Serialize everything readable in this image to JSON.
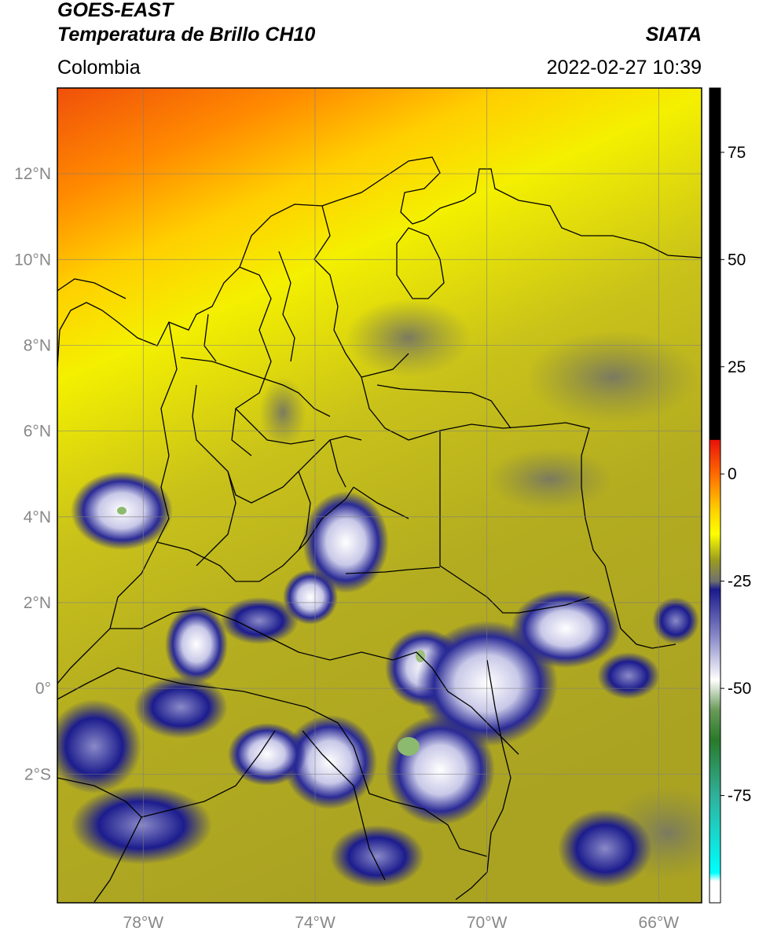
{
  "header": {
    "satellite": "GOES-EAST",
    "product": "Temperatura de Brillo CH10",
    "source": "SIATA",
    "region": "Colombia",
    "timestamp": "2022-02-27 10:39"
  },
  "map": {
    "lon_range": [
      -80,
      -65
    ],
    "lat_range": [
      -5,
      14
    ],
    "lat_ticks": [
      {
        "value": 12,
        "label": "12°N"
      },
      {
        "value": 10,
        "label": "10°N"
      },
      {
        "value": 8,
        "label": "8°N"
      },
      {
        "value": 6,
        "label": "6°N"
      },
      {
        "value": 4,
        "label": "4°N"
      },
      {
        "value": 2,
        "label": "2°N"
      },
      {
        "value": 0,
        "label": "0°"
      },
      {
        "value": -2,
        "label": "2°S"
      }
    ],
    "lon_ticks": [
      {
        "value": -78,
        "label": "78°W"
      },
      {
        "value": -74,
        "label": "74°W"
      },
      {
        "value": -70,
        "label": "70°W"
      },
      {
        "value": -66,
        "label": "66°W"
      }
    ]
  },
  "colorbar": {
    "range": [
      -100,
      90
    ],
    "ticks": [
      {
        "value": 75,
        "label": "75"
      },
      {
        "value": 50,
        "label": "50"
      },
      {
        "value": 25,
        "label": "25"
      },
      {
        "value": 0,
        "label": "0"
      },
      {
        "value": -25,
        "label": "-25"
      },
      {
        "value": -50,
        "label": "-50"
      },
      {
        "value": -75,
        "label": "-75"
      }
    ],
    "stops": [
      {
        "value": 90,
        "color": "#000000"
      },
      {
        "value": 8,
        "color": "#000000"
      },
      {
        "value": 7.9,
        "color": "#e8120a"
      },
      {
        "value": 0,
        "color": "#ff6a00"
      },
      {
        "value": -8,
        "color": "#ffcc00"
      },
      {
        "value": -14,
        "color": "#ffff00"
      },
      {
        "value": -20,
        "color": "#9c9c20"
      },
      {
        "value": -25,
        "color": "#707070"
      },
      {
        "value": -27,
        "color": "#1a1a8c"
      },
      {
        "value": -38,
        "color": "#8a8ac8"
      },
      {
        "value": -48,
        "color": "#ffffff"
      },
      {
        "value": -55,
        "color": "#6a9a5a"
      },
      {
        "value": -62,
        "color": "#2a7a2a"
      },
      {
        "value": -75,
        "color": "#30b09a"
      },
      {
        "value": -93,
        "color": "#00ffff"
      },
      {
        "value": -95,
        "color": "#ffffff"
      },
      {
        "value": -100,
        "color": "#ffffff"
      }
    ]
  }
}
